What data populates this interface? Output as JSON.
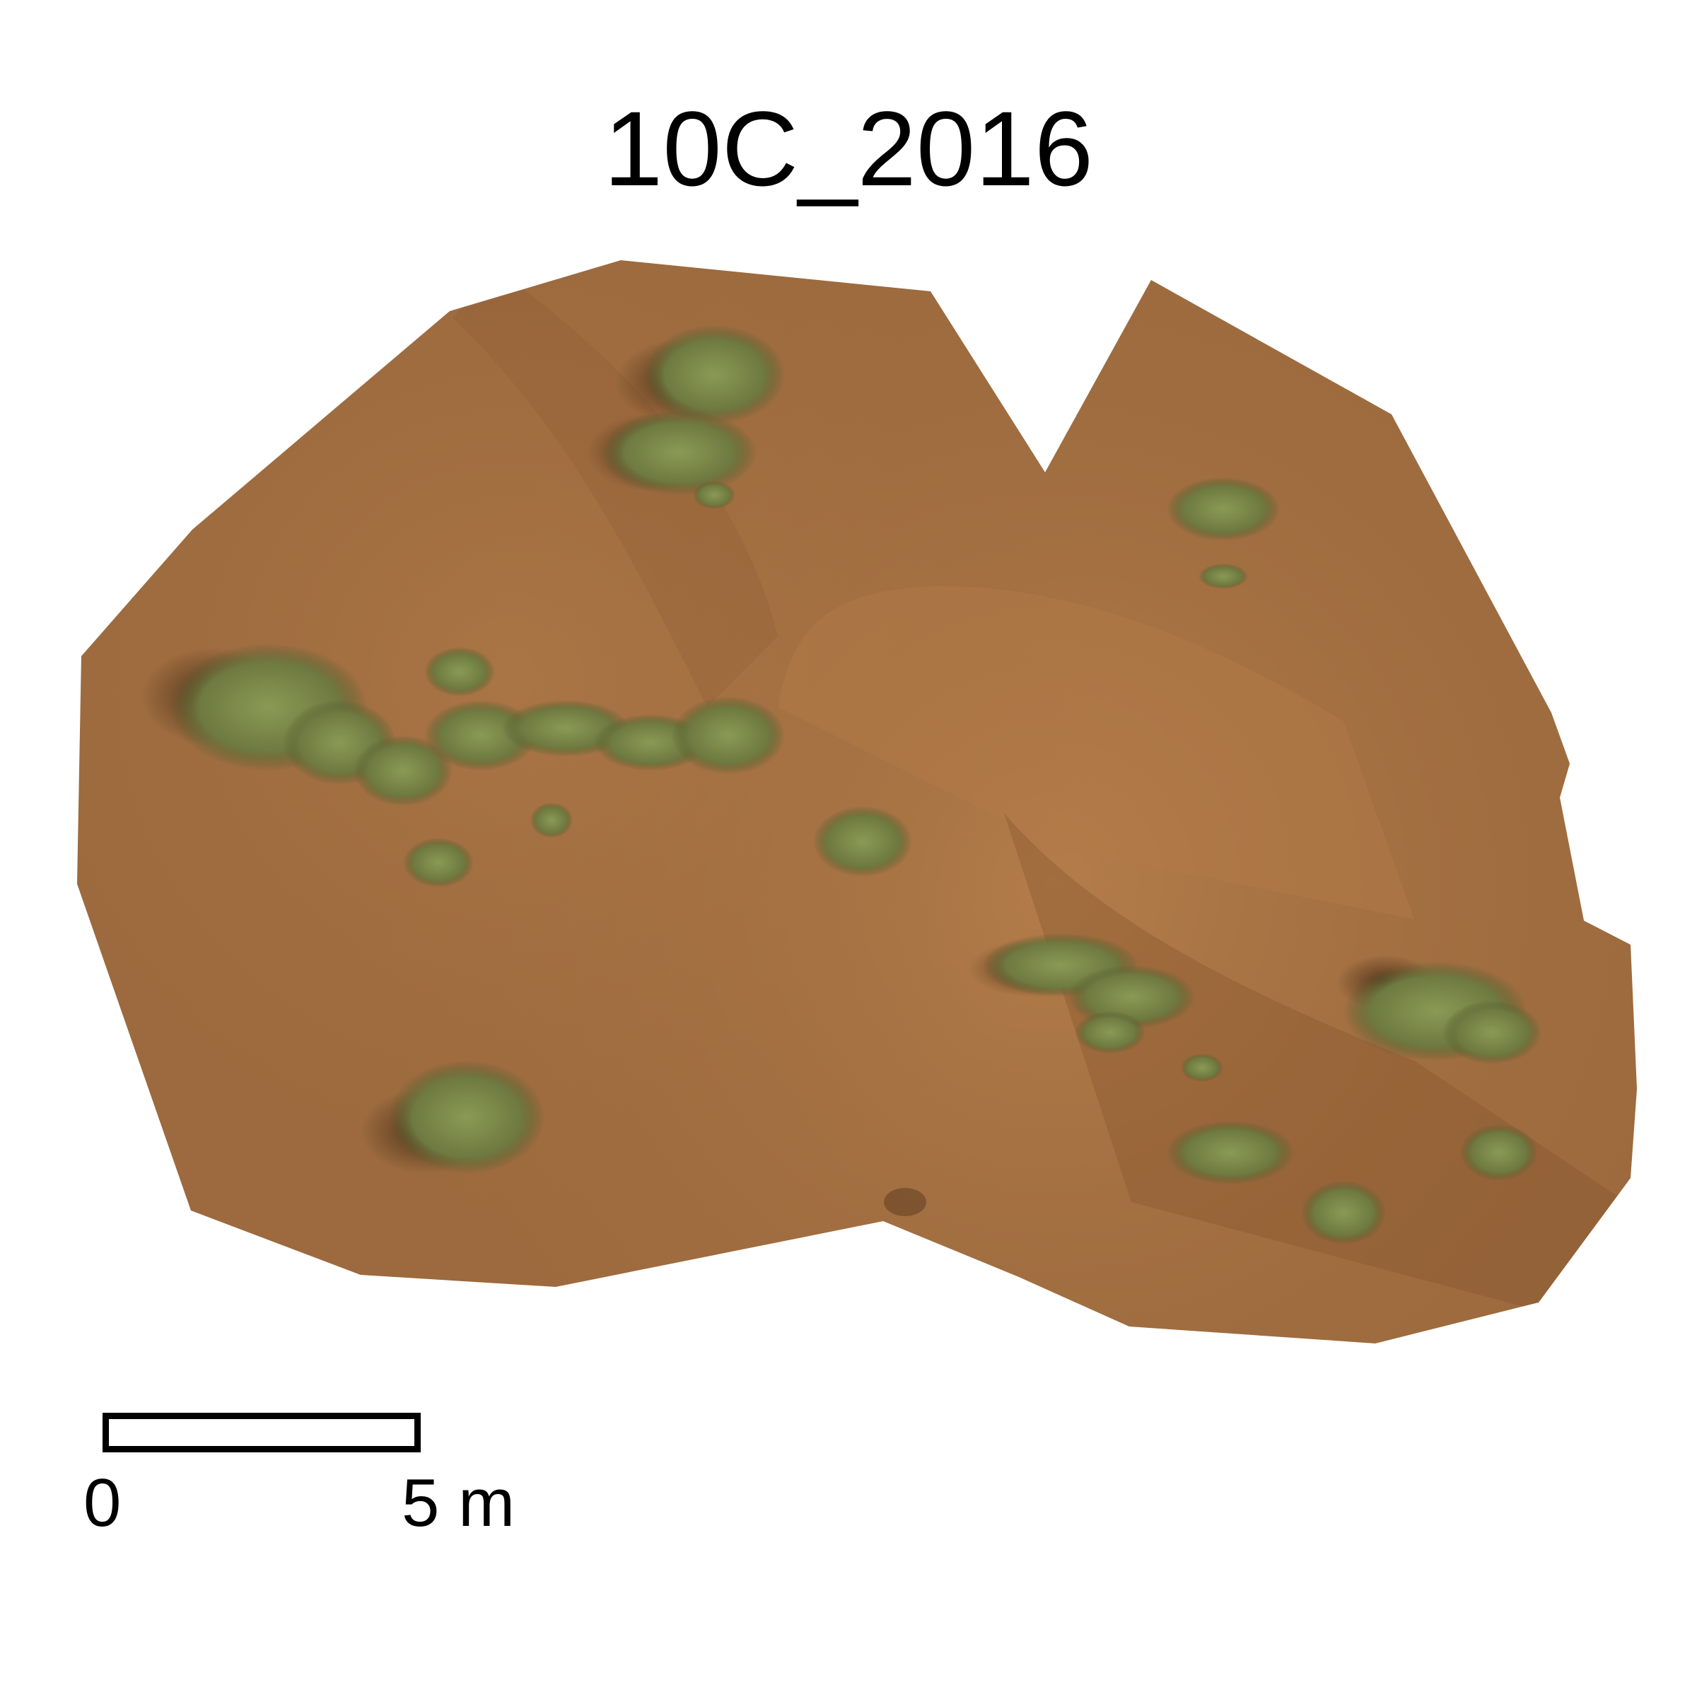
{
  "title": "10C_2016",
  "scale_bar": {
    "label_start": "0",
    "label_end": "5 m"
  },
  "colors": {
    "sand": "#9c6a3e",
    "sand_light": "#b37a48",
    "shadow": "#5a3a1e",
    "vegetation": "#7f8f4c",
    "vegetation_dark": "#4f5a2c"
  }
}
